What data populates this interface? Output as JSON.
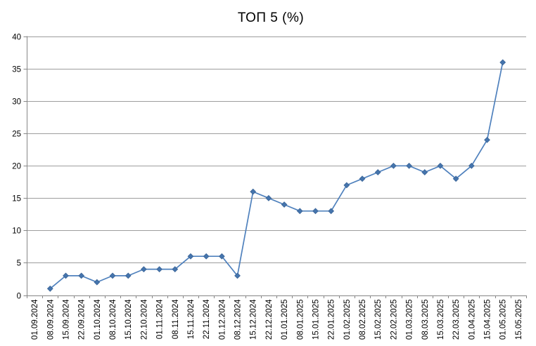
{
  "chart_data": {
    "type": "line",
    "title": "ТОП 5 (%)",
    "xlabel": "",
    "ylabel": "",
    "categories": [
      "01.09.2024",
      "08.09.2024",
      "15.09.2024",
      "22.09.2024",
      "01.10.2024",
      "08.10.2024",
      "15.10.2024",
      "22.10.2024",
      "01.11.2024",
      "08.11.2024",
      "15.11.2024",
      "22.11.2024",
      "01.12.2024",
      "08.12.2024",
      "15.12.2024",
      "22.12.2024",
      "01.01.2025",
      "08.01.2025",
      "15.01.2025",
      "22.01.2025",
      "01.02.2025",
      "08.02.2025",
      "15.02.2025",
      "22.02.2025",
      "01.03.2025",
      "08.03.2025",
      "15.03.2025",
      "22.03.2025",
      "01.04.2025",
      "15.04.2025",
      "01.05.2025",
      "15.05.2025"
    ],
    "values": [
      null,
      1,
      3,
      3,
      2,
      3,
      3,
      4,
      4,
      4,
      6,
      6,
      6,
      3,
      16,
      15,
      14,
      13,
      13,
      13,
      17,
      18,
      19,
      20,
      20,
      19,
      20,
      18,
      20,
      24,
      36,
      null
    ],
    "ylim": [
      0,
      40
    ],
    "ytick_step": 5,
    "grid": true,
    "legend": "none",
    "marker": "diamond",
    "colors": {
      "line": "#4F81BD",
      "marker_fill": "#4575AE",
      "marker_stroke": "#3E689B",
      "gridline": "#9D9D9D",
      "axis": "#868686",
      "text": "#000000",
      "background": "#FFFFFF"
    }
  }
}
